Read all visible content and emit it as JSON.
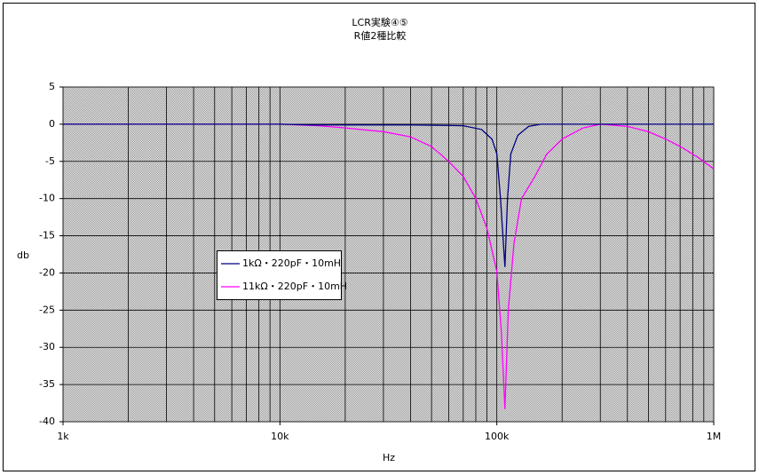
{
  "chart_data": {
    "type": "line",
    "title": "LCR実験④⑤",
    "subtitle": "R値2種比較",
    "x_label": "Hz",
    "y_label": "db",
    "x_scale": "log",
    "xlim": [
      1000,
      1000000
    ],
    "xticks": [
      {
        "value": 1000,
        "label": "1k"
      },
      {
        "value": 10000,
        "label": "10k"
      },
      {
        "value": 100000,
        "label": "100k"
      },
      {
        "value": 1000000,
        "label": "1M"
      }
    ],
    "x_minor_grid": [
      2000,
      3000,
      4000,
      5000,
      6000,
      7000,
      8000,
      9000,
      20000,
      30000,
      40000,
      50000,
      60000,
      70000,
      80000,
      90000,
      200000,
      300000,
      400000,
      500000,
      600000,
      700000,
      800000,
      900000
    ],
    "ylim": [
      -40,
      5
    ],
    "yticks": [
      5,
      0,
      -5,
      -10,
      -15,
      -20,
      -25,
      -30,
      -35,
      -40
    ],
    "grid": true,
    "legend": "center-left",
    "series": [
      {
        "name": "1kΩ・220pF・10mH",
        "color": "#000080",
        "x": [
          1000,
          10000,
          14000,
          20000,
          40000,
          70000,
          85000,
          95000,
          100000,
          104000,
          109000,
          112000,
          116000,
          125000,
          140000,
          160000,
          1000000
        ],
        "values": [
          0,
          0,
          -0.1,
          -0.1,
          -0.1,
          -0.2,
          -0.7,
          -2,
          -4,
          -10,
          -19.2,
          -10,
          -4,
          -1.5,
          -0.3,
          0,
          0
        ]
      },
      {
        "name": "11kΩ・220pF・10mH",
        "color": "#ff00ff",
        "x": [
          1000,
          10000,
          15000,
          20000,
          30000,
          40000,
          50000,
          60000,
          70000,
          80000,
          90000,
          100000,
          105000,
          109000,
          113000,
          120000,
          130000,
          150000,
          170000,
          200000,
          250000,
          300000,
          400000,
          500000,
          600000,
          700000,
          850000,
          1000000
        ],
        "values": [
          0,
          0,
          -0.2,
          -0.5,
          -1,
          -1.7,
          -3,
          -5,
          -7,
          -10,
          -14,
          -19.8,
          -28,
          -38.3,
          -25,
          -16,
          -10,
          -7,
          -4,
          -2,
          -0.5,
          0,
          -0.3,
          -1,
          -2,
          -3,
          -4.5,
          -6
        ]
      }
    ]
  }
}
